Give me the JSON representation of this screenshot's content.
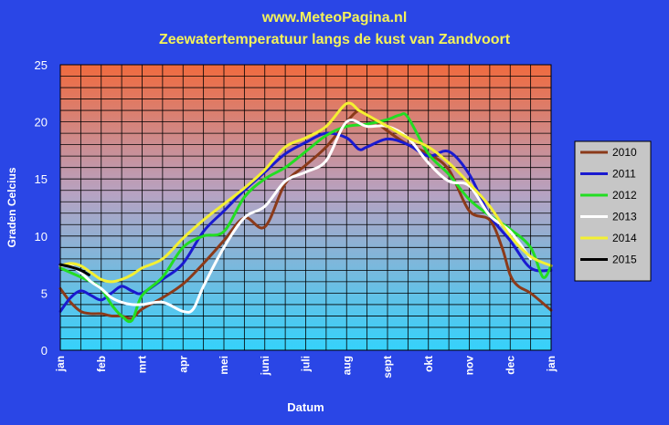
{
  "chart_data": {
    "type": "line",
    "title": "www.MeteoPagina.nl",
    "subtitle": "Zeewatertemperatuur langs de kust van Zandvoort",
    "xlabel": "Datum",
    "ylabel": "Graden Celcius",
    "ylim": [
      0,
      25
    ],
    "yticks": [
      0,
      5,
      10,
      15,
      20,
      25
    ],
    "xlim": [
      0,
      12
    ],
    "months": [
      "jan",
      "feb",
      "mrt",
      "apr",
      "mei",
      "juni",
      "juli",
      "aug",
      "sept",
      "okt",
      "nov",
      "dec",
      "jan"
    ],
    "grid": true,
    "legend_position": "right",
    "series": [
      {
        "name": "2010",
        "color": "#8b3a1a",
        "x": [
          0,
          0.25,
          0.5,
          0.75,
          1,
          1.25,
          1.5,
          1.75,
          2,
          2.5,
          3,
          3.5,
          4,
          4.5,
          5,
          5.5,
          6,
          6.5,
          7,
          7.3,
          7.5,
          8,
          8.5,
          9,
          9.5,
          10,
          10.5,
          10.8,
          11,
          11.2,
          11.5,
          12
        ],
        "y": [
          5.4,
          4.2,
          3.4,
          3.2,
          3.2,
          3.0,
          3.0,
          2.8,
          3.6,
          4.6,
          5.8,
          7.6,
          9.6,
          11.6,
          10.8,
          14.6,
          16.2,
          17.8,
          20.0,
          21.0,
          20.6,
          19.2,
          18.0,
          17.2,
          15.8,
          12.2,
          11.4,
          9.0,
          6.6,
          5.6,
          5.0,
          3.5
        ]
      },
      {
        "name": "2011",
        "color": "#1a1ad0",
        "x": [
          0,
          0.25,
          0.5,
          0.75,
          1,
          1.25,
          1.5,
          1.75,
          2,
          2.5,
          3,
          3.5,
          4,
          4.5,
          5,
          5.5,
          6,
          6.5,
          7,
          7.3,
          7.5,
          8,
          8.5,
          9,
          9.5,
          10,
          10.5,
          11,
          11.5,
          12
        ],
        "y": [
          3.4,
          4.6,
          5.2,
          4.8,
          4.4,
          5.0,
          5.6,
          5.2,
          5.0,
          6.2,
          7.6,
          10.4,
          12.2,
          14.0,
          15.6,
          17.2,
          18.2,
          19.0,
          18.6,
          17.6,
          17.8,
          18.5,
          18.0,
          17.0,
          17.4,
          15.4,
          11.8,
          9.6,
          7.2,
          7.0
        ]
      },
      {
        "name": "2012",
        "color": "#22dd22",
        "x": [
          0,
          0.25,
          0.5,
          0.75,
          1,
          1.25,
          1.5,
          1.75,
          2,
          2.5,
          3,
          3.5,
          4,
          4.5,
          5,
          5.5,
          6,
          6.5,
          7,
          7.5,
          8,
          8.3,
          8.5,
          9,
          9.5,
          10,
          10.5,
          11,
          11.5,
          11.8,
          12
        ],
        "y": [
          7.2,
          6.8,
          6.4,
          6.0,
          5.4,
          4.0,
          3.0,
          2.6,
          4.8,
          6.4,
          9.0,
          10.0,
          10.4,
          13.4,
          15.0,
          16.0,
          17.4,
          18.8,
          19.6,
          19.8,
          20.2,
          20.6,
          20.4,
          17.2,
          15.4,
          13.2,
          11.8,
          10.6,
          9.0,
          6.4,
          7.4
        ]
      },
      {
        "name": "2013",
        "color": "#ffffff",
        "x": [
          0,
          0.25,
          0.5,
          0.75,
          1,
          1.25,
          1.5,
          1.75,
          2,
          2.5,
          3,
          3.25,
          3.5,
          4,
          4.5,
          5,
          5.5,
          6,
          6.5,
          7,
          7.5,
          8,
          8.5,
          9,
          9.5,
          10,
          10.5,
          11,
          11.5
        ],
        "y": [
          7.4,
          7.4,
          6.8,
          6.0,
          5.4,
          4.6,
          4.2,
          4.0,
          4.0,
          4.2,
          3.4,
          3.6,
          5.6,
          9.0,
          11.6,
          12.6,
          14.8,
          15.6,
          16.6,
          20.0,
          19.6,
          19.6,
          18.6,
          16.4,
          14.8,
          14.4,
          11.8,
          10.4,
          8.0
        ]
      },
      {
        "name": "2014",
        "color": "#f4f032",
        "x": [
          0,
          0.25,
          0.5,
          0.75,
          1,
          1.25,
          1.5,
          1.75,
          2,
          2.5,
          3,
          3.5,
          4,
          4.5,
          5,
          5.5,
          6,
          6.5,
          7,
          7.3,
          7.5,
          8,
          8.5,
          9,
          9.5,
          10,
          10.5,
          11,
          11.5,
          12
        ],
        "y": [
          7.4,
          7.6,
          7.4,
          6.8,
          6.2,
          6.0,
          6.2,
          6.6,
          7.2,
          8.0,
          9.8,
          11.4,
          12.8,
          14.2,
          15.8,
          17.8,
          18.6,
          19.6,
          21.6,
          21.0,
          20.6,
          19.6,
          18.6,
          17.8,
          16.4,
          14.6,
          12.6,
          10.0,
          8.2,
          7.4
        ]
      },
      {
        "name": "2015",
        "color": "#000000",
        "x": [
          0,
          0.25,
          0.5,
          0.7
        ],
        "y": [
          7.5,
          7.3,
          7.0,
          6.6
        ]
      }
    ]
  }
}
